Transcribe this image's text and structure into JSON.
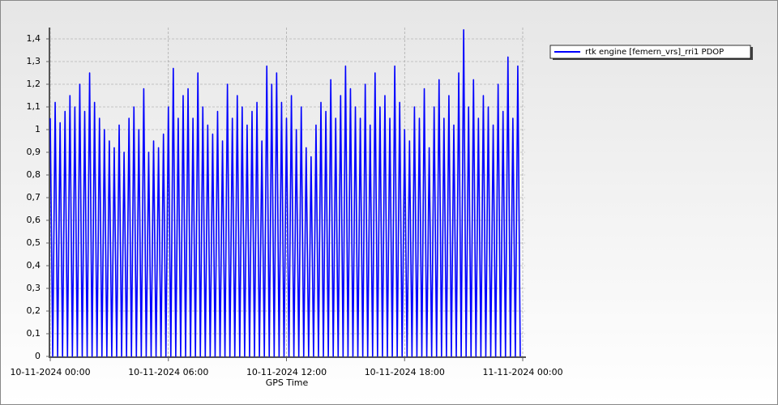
{
  "chart_data": {
    "type": "line",
    "xlabel": "GPS Time",
    "xlim": [
      0,
      24
    ],
    "ylim": [
      0,
      1.45
    ],
    "grid": true,
    "legend": "upper-right",
    "xticks": [
      {
        "value": 0,
        "label": "10-11-2024 00:00"
      },
      {
        "value": 6,
        "label": "10-11-2024 06:00"
      },
      {
        "value": 12,
        "label": "10-11-2024 12:00"
      },
      {
        "value": 18,
        "label": "10-11-2024 18:00"
      },
      {
        "value": 24,
        "label": "11-11-2024 00:00"
      }
    ],
    "yticks": [
      0,
      {
        "value": 0.1,
        "label": "0,1"
      },
      {
        "value": 0.2,
        "label": "0,2"
      },
      {
        "value": 0.3,
        "label": "0,3"
      },
      {
        "value": 0.4,
        "label": "0,4"
      },
      {
        "value": 0.5,
        "label": "0,5"
      },
      {
        "value": 0.6,
        "label": "0,6"
      },
      {
        "value": 0.7,
        "label": "0,7"
      },
      {
        "value": 0.8,
        "label": "0,8"
      },
      {
        "value": 0.9,
        "label": "0,9"
      },
      1,
      {
        "value": 1.1,
        "label": "1,1"
      },
      {
        "value": 1.2,
        "label": "1,2"
      },
      {
        "value": 1.3,
        "label": "1,3"
      },
      {
        "value": 1.4,
        "label": "1,4"
      }
    ],
    "x": [
      0,
      0.125,
      0.25,
      0.375,
      0.5,
      0.625,
      0.75,
      0.875,
      1,
      1.125,
      1.25,
      1.375,
      1.5,
      1.625,
      1.75,
      1.875,
      2,
      2.125,
      2.25,
      2.375,
      2.5,
      2.625,
      2.75,
      2.875,
      3,
      3.125,
      3.25,
      3.375,
      3.5,
      3.625,
      3.75,
      3.875,
      4,
      4.125,
      4.25,
      4.375,
      4.5,
      4.625,
      4.75,
      4.875,
      5,
      5.125,
      5.25,
      5.375,
      5.5,
      5.625,
      5.75,
      5.875,
      6,
      6.125,
      6.25,
      6.375,
      6.5,
      6.625,
      6.75,
      6.875,
      7,
      7.125,
      7.25,
      7.375,
      7.5,
      7.625,
      7.75,
      7.875,
      8,
      8.125,
      8.25,
      8.375,
      8.5,
      8.625,
      8.75,
      8.875,
      9,
      9.125,
      9.25,
      9.375,
      9.5,
      9.625,
      9.75,
      9.875,
      10,
      10.125,
      10.25,
      10.375,
      10.5,
      10.625,
      10.75,
      10.875,
      11,
      11.125,
      11.25,
      11.375,
      11.5,
      11.625,
      11.75,
      11.875,
      12,
      12.125,
      12.25,
      12.375,
      12.5,
      12.625,
      12.75,
      12.875,
      13,
      13.125,
      13.25,
      13.375,
      13.5,
      13.625,
      13.75,
      13.875,
      14,
      14.125,
      14.25,
      14.375,
      14.5,
      14.625,
      14.75,
      14.875,
      15,
      15.125,
      15.25,
      15.375,
      15.5,
      15.625,
      15.75,
      15.875,
      16,
      16.125,
      16.25,
      16.375,
      16.5,
      16.625,
      16.75,
      16.875,
      17,
      17.125,
      17.25,
      17.375,
      17.5,
      17.625,
      17.75,
      17.875,
      18,
      18.125,
      18.25,
      18.375,
      18.5,
      18.625,
      18.75,
      18.875,
      19,
      19.125,
      19.25,
      19.375,
      19.5,
      19.625,
      19.75,
      19.875,
      20,
      20.125,
      20.25,
      20.375,
      20.5,
      20.625,
      20.75,
      20.875,
      21,
      21.125,
      21.25,
      21.375,
      21.5,
      21.625,
      21.75,
      21.875,
      22,
      22.125,
      22.25,
      22.375,
      22.5,
      22.625,
      22.75,
      22.875,
      23,
      23.125,
      23.25,
      23.375,
      23.5,
      23.625,
      23.75,
      23.875
    ],
    "series": [
      {
        "name": "rtk engine [femern_vrs]_rri1 PDOP",
        "color": "#0000ff",
        "values": [
          1.05,
          0,
          1.12,
          0,
          1.03,
          0,
          1.08,
          0,
          1.15,
          0,
          1.1,
          0,
          1.2,
          0,
          1.08,
          0,
          1.25,
          0,
          1.12,
          0,
          1.05,
          0,
          1.0,
          0,
          0.95,
          0,
          0.92,
          0,
          1.02,
          0,
          0.9,
          0,
          1.05,
          0,
          1.1,
          0,
          1.0,
          0,
          1.18,
          0,
          0.9,
          0,
          0.95,
          0,
          0.92,
          0,
          0.98,
          0,
          1.1,
          0,
          1.27,
          0,
          1.05,
          0,
          1.15,
          0,
          1.18,
          0,
          1.05,
          0,
          1.25,
          0,
          1.1,
          0,
          1.02,
          0,
          0.98,
          0,
          1.08,
          0,
          0.95,
          0,
          1.2,
          0,
          1.05,
          0,
          1.15,
          0,
          1.1,
          0,
          1.02,
          0,
          1.08,
          0,
          1.12,
          0,
          0.95,
          0,
          1.28,
          0,
          1.2,
          0,
          1.25,
          0,
          1.12,
          0,
          1.05,
          0,
          1.15,
          0,
          1.0,
          0,
          1.1,
          0,
          0.92,
          0,
          0.88,
          0,
          1.02,
          0,
          1.12,
          0,
          1.08,
          0,
          1.22,
          0,
          1.05,
          0,
          1.15,
          0,
          1.28,
          0,
          1.18,
          0,
          1.1,
          0,
          1.05,
          0,
          1.2,
          0,
          1.02,
          0,
          1.25,
          0,
          1.1,
          0,
          1.15,
          0,
          1.05,
          0,
          1.28,
          0,
          1.12,
          0,
          1.0,
          0,
          0.95,
          0,
          1.1,
          0,
          1.05,
          0,
          1.18,
          0,
          0.92,
          0,
          1.1,
          0,
          1.22,
          0,
          1.05,
          0,
          1.15,
          0,
          1.02,
          0,
          1.25,
          0,
          1.44,
          0,
          1.1,
          0,
          1.22,
          0,
          1.05,
          0,
          1.15,
          0,
          1.1,
          0,
          1.02,
          0,
          1.2,
          0,
          1.08,
          0,
          1.32,
          0,
          1.05,
          0,
          1.28,
          0
        ]
      }
    ]
  }
}
